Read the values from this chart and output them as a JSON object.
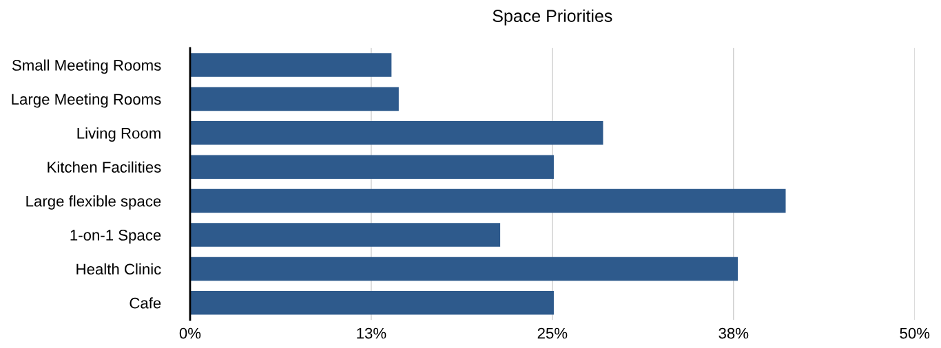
{
  "chart_data": {
    "type": "bar",
    "orientation": "horizontal",
    "title": "Space Priorities",
    "categories": [
      "Small Meeting Rooms",
      "Large Meeting Rooms",
      "Living Room",
      "Kitchen Facilities",
      "Large flexible space",
      "1-on-1 Space",
      "Health Clinic",
      "Cafe"
    ],
    "values": [
      13.9,
      14.4,
      28.5,
      25.1,
      41.1,
      21.4,
      37.8,
      25.1
    ],
    "color": "#2e5a8c",
    "xlim": [
      0,
      50
    ],
    "xticks": [
      {
        "value": 0,
        "label": "0%"
      },
      {
        "value": 12.5,
        "label": "13%"
      },
      {
        "value": 25,
        "label": "25%"
      },
      {
        "value": 37.5,
        "label": "38%"
      },
      {
        "value": 50,
        "label": "50%"
      }
    ],
    "grid": "x",
    "legend": false
  }
}
